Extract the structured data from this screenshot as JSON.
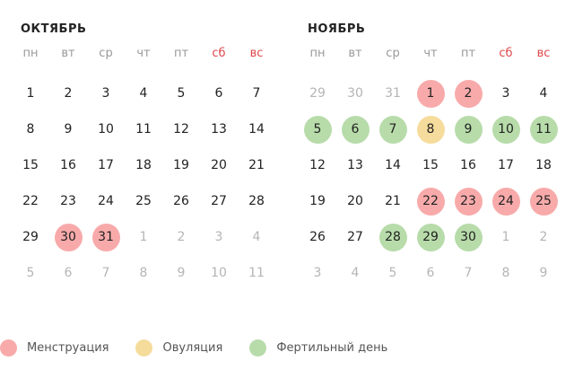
{
  "colors": {
    "menstruation": "#f8aaaa",
    "ovulation": "#f6dc9c",
    "fertile": "#b7dcaa",
    "weekend": "#e0474c"
  },
  "weekdays": [
    "пн",
    "вт",
    "ср",
    "чт",
    "пт",
    "сб",
    "вс"
  ],
  "months": [
    {
      "title": "ОКТЯБРЬ",
      "days": [
        [
          "1",
          ""
        ],
        [
          "2",
          ""
        ],
        [
          "3",
          ""
        ],
        [
          "4",
          ""
        ],
        [
          "5",
          ""
        ],
        [
          "6",
          ""
        ],
        [
          "7",
          ""
        ],
        [
          "8",
          ""
        ],
        [
          "9",
          ""
        ],
        [
          "10",
          ""
        ],
        [
          "11",
          ""
        ],
        [
          "12",
          ""
        ],
        [
          "13",
          ""
        ],
        [
          "14",
          ""
        ],
        [
          "15",
          ""
        ],
        [
          "16",
          ""
        ],
        [
          "17",
          ""
        ],
        [
          "18",
          ""
        ],
        [
          "19",
          ""
        ],
        [
          "20",
          ""
        ],
        [
          "21",
          ""
        ],
        [
          "22",
          ""
        ],
        [
          "23",
          ""
        ],
        [
          "24",
          ""
        ],
        [
          "25",
          ""
        ],
        [
          "26",
          ""
        ],
        [
          "27",
          ""
        ],
        [
          "28",
          ""
        ],
        [
          "29",
          ""
        ],
        [
          "30",
          "m"
        ],
        [
          "31",
          "m"
        ],
        [
          "1",
          "muted"
        ],
        [
          "2",
          "muted"
        ],
        [
          "3",
          "muted"
        ],
        [
          "4",
          "muted"
        ],
        [
          "5",
          "muted"
        ],
        [
          "6",
          "muted"
        ],
        [
          "7",
          "muted"
        ],
        [
          "8",
          "muted"
        ],
        [
          "9",
          "muted"
        ],
        [
          "10",
          "muted"
        ],
        [
          "11",
          "muted"
        ]
      ]
    },
    {
      "title": "НОЯБРЬ",
      "days": [
        [
          "29",
          "muted"
        ],
        [
          "30",
          "muted"
        ],
        [
          "31",
          "muted"
        ],
        [
          "1",
          "m"
        ],
        [
          "2",
          "m"
        ],
        [
          "3",
          ""
        ],
        [
          "4",
          ""
        ],
        [
          "5",
          "f"
        ],
        [
          "6",
          "f"
        ],
        [
          "7",
          "f"
        ],
        [
          "8",
          "o"
        ],
        [
          "9",
          "f"
        ],
        [
          "10",
          "f"
        ],
        [
          "11",
          "f"
        ],
        [
          "12",
          ""
        ],
        [
          "13",
          ""
        ],
        [
          "14",
          ""
        ],
        [
          "15",
          ""
        ],
        [
          "16",
          ""
        ],
        [
          "17",
          ""
        ],
        [
          "18",
          ""
        ],
        [
          "19",
          ""
        ],
        [
          "20",
          ""
        ],
        [
          "21",
          ""
        ],
        [
          "22",
          "m"
        ],
        [
          "23",
          "m"
        ],
        [
          "24",
          "m"
        ],
        [
          "25",
          "m"
        ],
        [
          "26",
          ""
        ],
        [
          "27",
          ""
        ],
        [
          "28",
          "f"
        ],
        [
          "29",
          "f"
        ],
        [
          "30",
          "f"
        ],
        [
          "1",
          "muted"
        ],
        [
          "2",
          "muted"
        ],
        [
          "3",
          "muted"
        ],
        [
          "4",
          "muted"
        ],
        [
          "5",
          "muted"
        ],
        [
          "6",
          "muted"
        ],
        [
          "7",
          "muted"
        ],
        [
          "8",
          "muted"
        ],
        [
          "9",
          "muted"
        ]
      ]
    }
  ],
  "legend": {
    "menstruation": "Менструация",
    "ovulation": "Овуляция",
    "fertile": "Фертильный день"
  }
}
